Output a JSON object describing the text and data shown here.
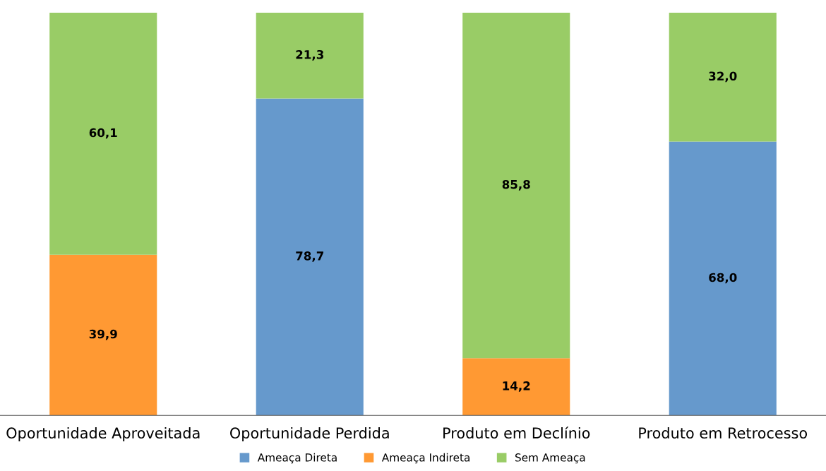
{
  "chart_data": {
    "type": "bar",
    "stacked": true,
    "categories": [
      "Oportunidade Aproveitada",
      "Oportunidade Perdida",
      "Produto em Declínio",
      "Produto em Retrocesso"
    ],
    "series": [
      {
        "name": "Ameaça Direta",
        "color": "#6699cc",
        "values": [
          null,
          78.7,
          null,
          68.0
        ],
        "value_labels": [
          null,
          "78,7",
          null,
          "68,0"
        ]
      },
      {
        "name": "Ameaça Indireta",
        "color": "#ff9933",
        "values": [
          39.9,
          null,
          14.2,
          null
        ],
        "value_labels": [
          "39,9",
          null,
          "14,2",
          null
        ]
      },
      {
        "name": "Sem Ameaça",
        "color": "#99cc66",
        "values": [
          60.1,
          21.3,
          85.8,
          32.0
        ],
        "value_labels": [
          "60,1",
          "21,3",
          "85,8",
          "32,0"
        ]
      }
    ],
    "ylim": [
      0,
      100
    ],
    "legend": "bottom",
    "grid": false,
    "tick_labels": "x"
  }
}
